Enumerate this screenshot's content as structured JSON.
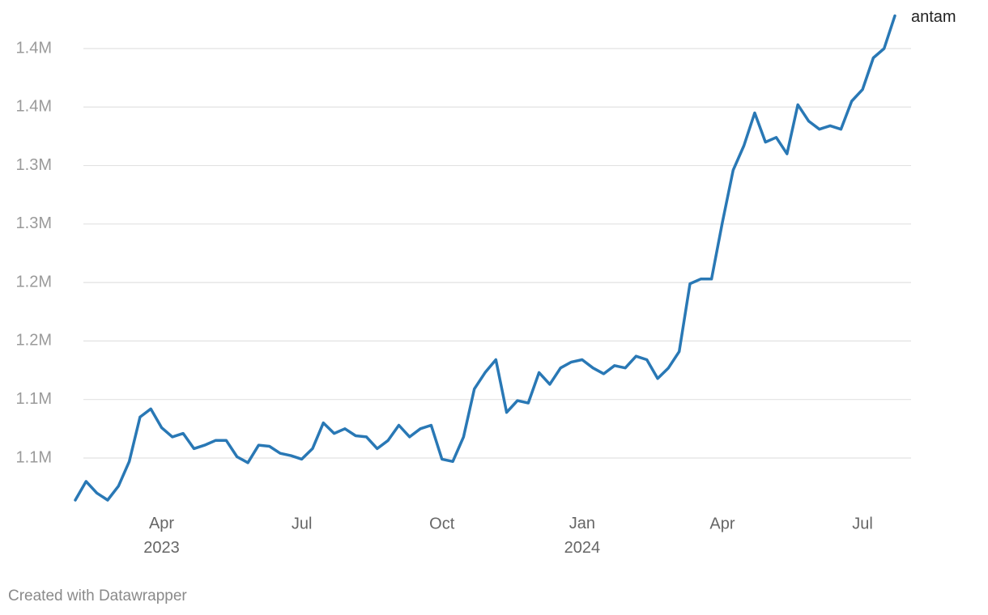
{
  "chart_data": {
    "type": "line",
    "categories": [
      null,
      null,
      null,
      null,
      null,
      null,
      null,
      null,
      "Apr 2023",
      null,
      null,
      null,
      null,
      null,
      null,
      null,
      null,
      null,
      null,
      null,
      null,
      "Jul",
      null,
      null,
      null,
      null,
      null,
      null,
      null,
      null,
      null,
      null,
      null,
      null,
      "Oct",
      null,
      null,
      null,
      null,
      null,
      null,
      null,
      null,
      null,
      null,
      null,
      null,
      "Jan 2024",
      null,
      null,
      null,
      null,
      null,
      null,
      null,
      null,
      null,
      null,
      null,
      null,
      "Apr",
      null,
      null,
      null,
      null,
      null,
      null,
      null,
      null,
      null,
      null,
      null,
      null,
      "Jul",
      null,
      null,
      null
    ],
    "series": [
      {
        "name": "antam",
        "color": "#2978b5",
        "values": [
          1014000,
          1030000,
          1020000,
          1014000,
          1026000,
          1047000,
          1085000,
          1092000,
          1076000,
          1068000,
          1071000,
          1058000,
          1061000,
          1065000,
          1065000,
          1051000,
          1046000,
          1061000,
          1060000,
          1054000,
          1052000,
          1049000,
          1058000,
          1080000,
          1071000,
          1075000,
          1069000,
          1068000,
          1058000,
          1065000,
          1078000,
          1068000,
          1075000,
          1078000,
          1049000,
          1047000,
          1068000,
          1109000,
          1123000,
          1134000,
          1089000,
          1099000,
          1097000,
          1123000,
          1113000,
          1127000,
          1132000,
          1134000,
          1127000,
          1122000,
          1129000,
          1127000,
          1137000,
          1134000,
          1118000,
          1127000,
          1141000,
          1199000,
          1203000,
          1203000,
          1251000,
          1296000,
          1317000,
          1345000,
          1320000,
          1324000,
          1310000,
          1352000,
          1338000,
          1331000,
          1334000,
          1331000,
          1355000,
          1365000,
          1392000,
          1400000,
          1428000
        ]
      }
    ],
    "ylim": [
      1010000,
      1430000
    ],
    "yticks": [
      {
        "value": 1050000,
        "label": "1.1M"
      },
      {
        "value": 1100000,
        "label": "1.1M"
      },
      {
        "value": 1150000,
        "label": "1.2M"
      },
      {
        "value": 1200000,
        "label": "1.2M"
      },
      {
        "value": 1250000,
        "label": "1.3M"
      },
      {
        "value": 1300000,
        "label": "1.3M"
      },
      {
        "value": 1350000,
        "label": "1.4M"
      },
      {
        "value": 1400000,
        "label": "1.4M"
      }
    ],
    "grid": true,
    "footer": "Created with Datawrapper"
  }
}
